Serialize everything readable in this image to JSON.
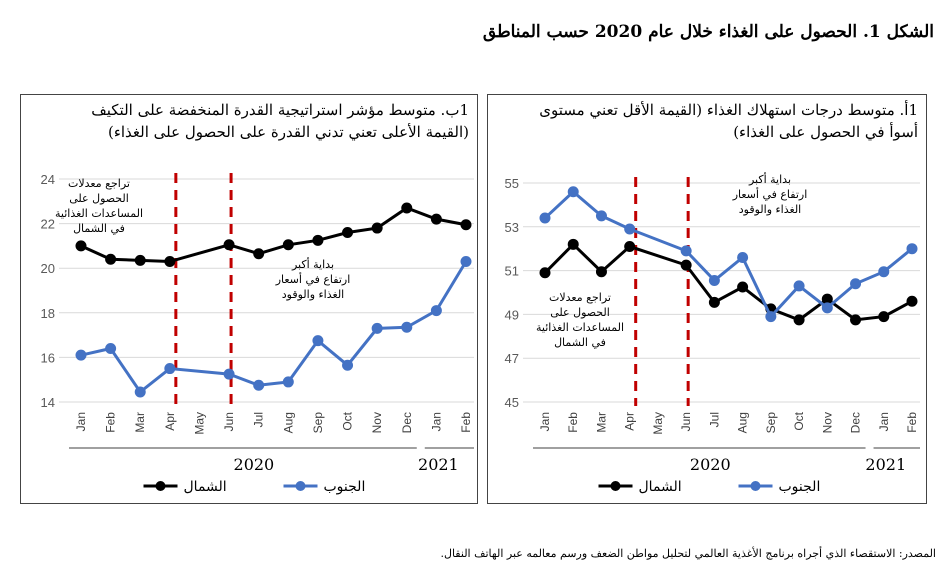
{
  "figure_title": "الشكل 1. الحصول على الغذاء خلال عام 2020 حسب المناطق",
  "source_note": "المصدر: الاستقصاء الذي أجراه برنامج الأغذية العالمي لتحليل مواطن الضعف ورسم معالمه عبر الهاتف النقال.",
  "colors": {
    "north": "#000000",
    "south": "#4472C4",
    "marker": "#C00000"
  },
  "chart_data": [
    {
      "id": "panel-b",
      "type": "line",
      "title_line1": "1ب. متوسط مؤشر استراتيجية القدرة المنخفضة على التكيف",
      "title_line2": "(القيمة الأعلى تعني تدني القدرة على الحصول على الغذاء)",
      "categories": [
        "Jan",
        "Feb",
        "Mar",
        "Apr",
        "May",
        "Jun",
        "Jul",
        "Aug",
        "Sep",
        "Oct",
        "Nov",
        "Dec",
        "Jan",
        "Feb"
      ],
      "year_labels": [
        "2020",
        "2021"
      ],
      "ylim": [
        14,
        24
      ],
      "yticks": [
        14,
        16,
        18,
        20,
        22,
        24
      ],
      "grid": true,
      "legend_position": "bottom",
      "series": [
        {
          "name": "الشمال",
          "key": "north",
          "values": [
            21.0,
            20.4,
            20.35,
            20.3,
            null,
            21.05,
            20.65,
            21.05,
            21.25,
            21.6,
            21.8,
            22.7,
            22.2,
            21.95
          ]
        },
        {
          "name": "الجنوب",
          "key": "south",
          "values": [
            16.1,
            16.4,
            14.45,
            15.5,
            null,
            15.25,
            14.75,
            14.9,
            16.75,
            15.65,
            17.3,
            17.35,
            18.1,
            20.3
          ]
        }
      ],
      "markers": [
        3,
        5
      ],
      "annotations": [
        {
          "lines": [
            "تراجع معدلات",
            "الحصول على",
            "المساعدات الغذائية",
            "في الشمال"
          ]
        },
        {
          "lines": [
            "بداية أكبر",
            "ارتفاع في أسعار",
            "الغذاء والوقود"
          ]
        }
      ]
    },
    {
      "id": "panel-a",
      "type": "line",
      "title_line1": "1أ. متوسط درجات استهلاك الغذاء (القيمة الأقل تعني مستوى",
      "title_line2": "أسوأ في الحصول على الغذاء)",
      "categories": [
        "Jan",
        "Feb",
        "Mar",
        "Apr",
        "May",
        "Jun",
        "Jul",
        "Aug",
        "Sep",
        "Oct",
        "Nov",
        "Dec",
        "Jan",
        "Feb"
      ],
      "year_labels": [
        "2020",
        "2021"
      ],
      "ylim": [
        45,
        55
      ],
      "yticks": [
        45,
        47,
        49,
        51,
        53,
        55
      ],
      "grid": true,
      "legend_position": "bottom",
      "series": [
        {
          "name": "الشمال",
          "key": "north",
          "values": [
            50.9,
            52.2,
            50.95,
            52.1,
            null,
            51.25,
            49.55,
            50.25,
            49.25,
            48.75,
            49.7,
            48.75,
            48.9,
            49.6
          ]
        },
        {
          "name": "الجنوب",
          "key": "south",
          "values": [
            53.4,
            54.6,
            53.5,
            52.9,
            null,
            51.9,
            50.55,
            51.6,
            48.9,
            50.3,
            49.3,
            50.4,
            50.95,
            52.0
          ]
        }
      ],
      "markers": [
        3,
        5
      ],
      "annotations": [
        {
          "lines": [
            "بداية أكبر",
            "ارتفاع في أسعار",
            "الغذاء والوقود"
          ]
        },
        {
          "lines": [
            "تراجع معدلات",
            "الحصول على",
            "المساعدات الغذائية",
            "في الشمال"
          ]
        }
      ]
    }
  ]
}
